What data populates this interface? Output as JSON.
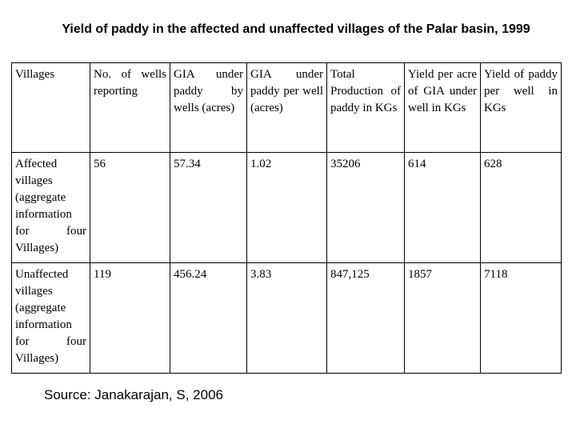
{
  "header": {
    "title": "Yield of paddy in the affected and unaffected villages of the Palar basin, 1999"
  },
  "table": {
    "columns": [
      "Villages",
      "No. of wells reporting",
      "GIA under paddy by wells (acres)",
      "GIA under paddy per well (acres)",
      "Total Production of paddy in KGs",
      "Yield per acre of GIA under well in KGs",
      "Yield of paddy per well in KGs"
    ],
    "rows": [
      [
        "Affected villages (aggregate information for four Villages)",
        "56",
        "57.34",
        "1.02",
        "35206",
        "614",
        "628"
      ],
      [
        "Unaffected villages (aggregate information for four Villages)",
        "119",
        "456.24",
        "3.83",
        "847,125",
        "1857",
        "7118"
      ]
    ]
  },
  "footer": {
    "source": "Source: Janakarajan, S, 2006"
  }
}
